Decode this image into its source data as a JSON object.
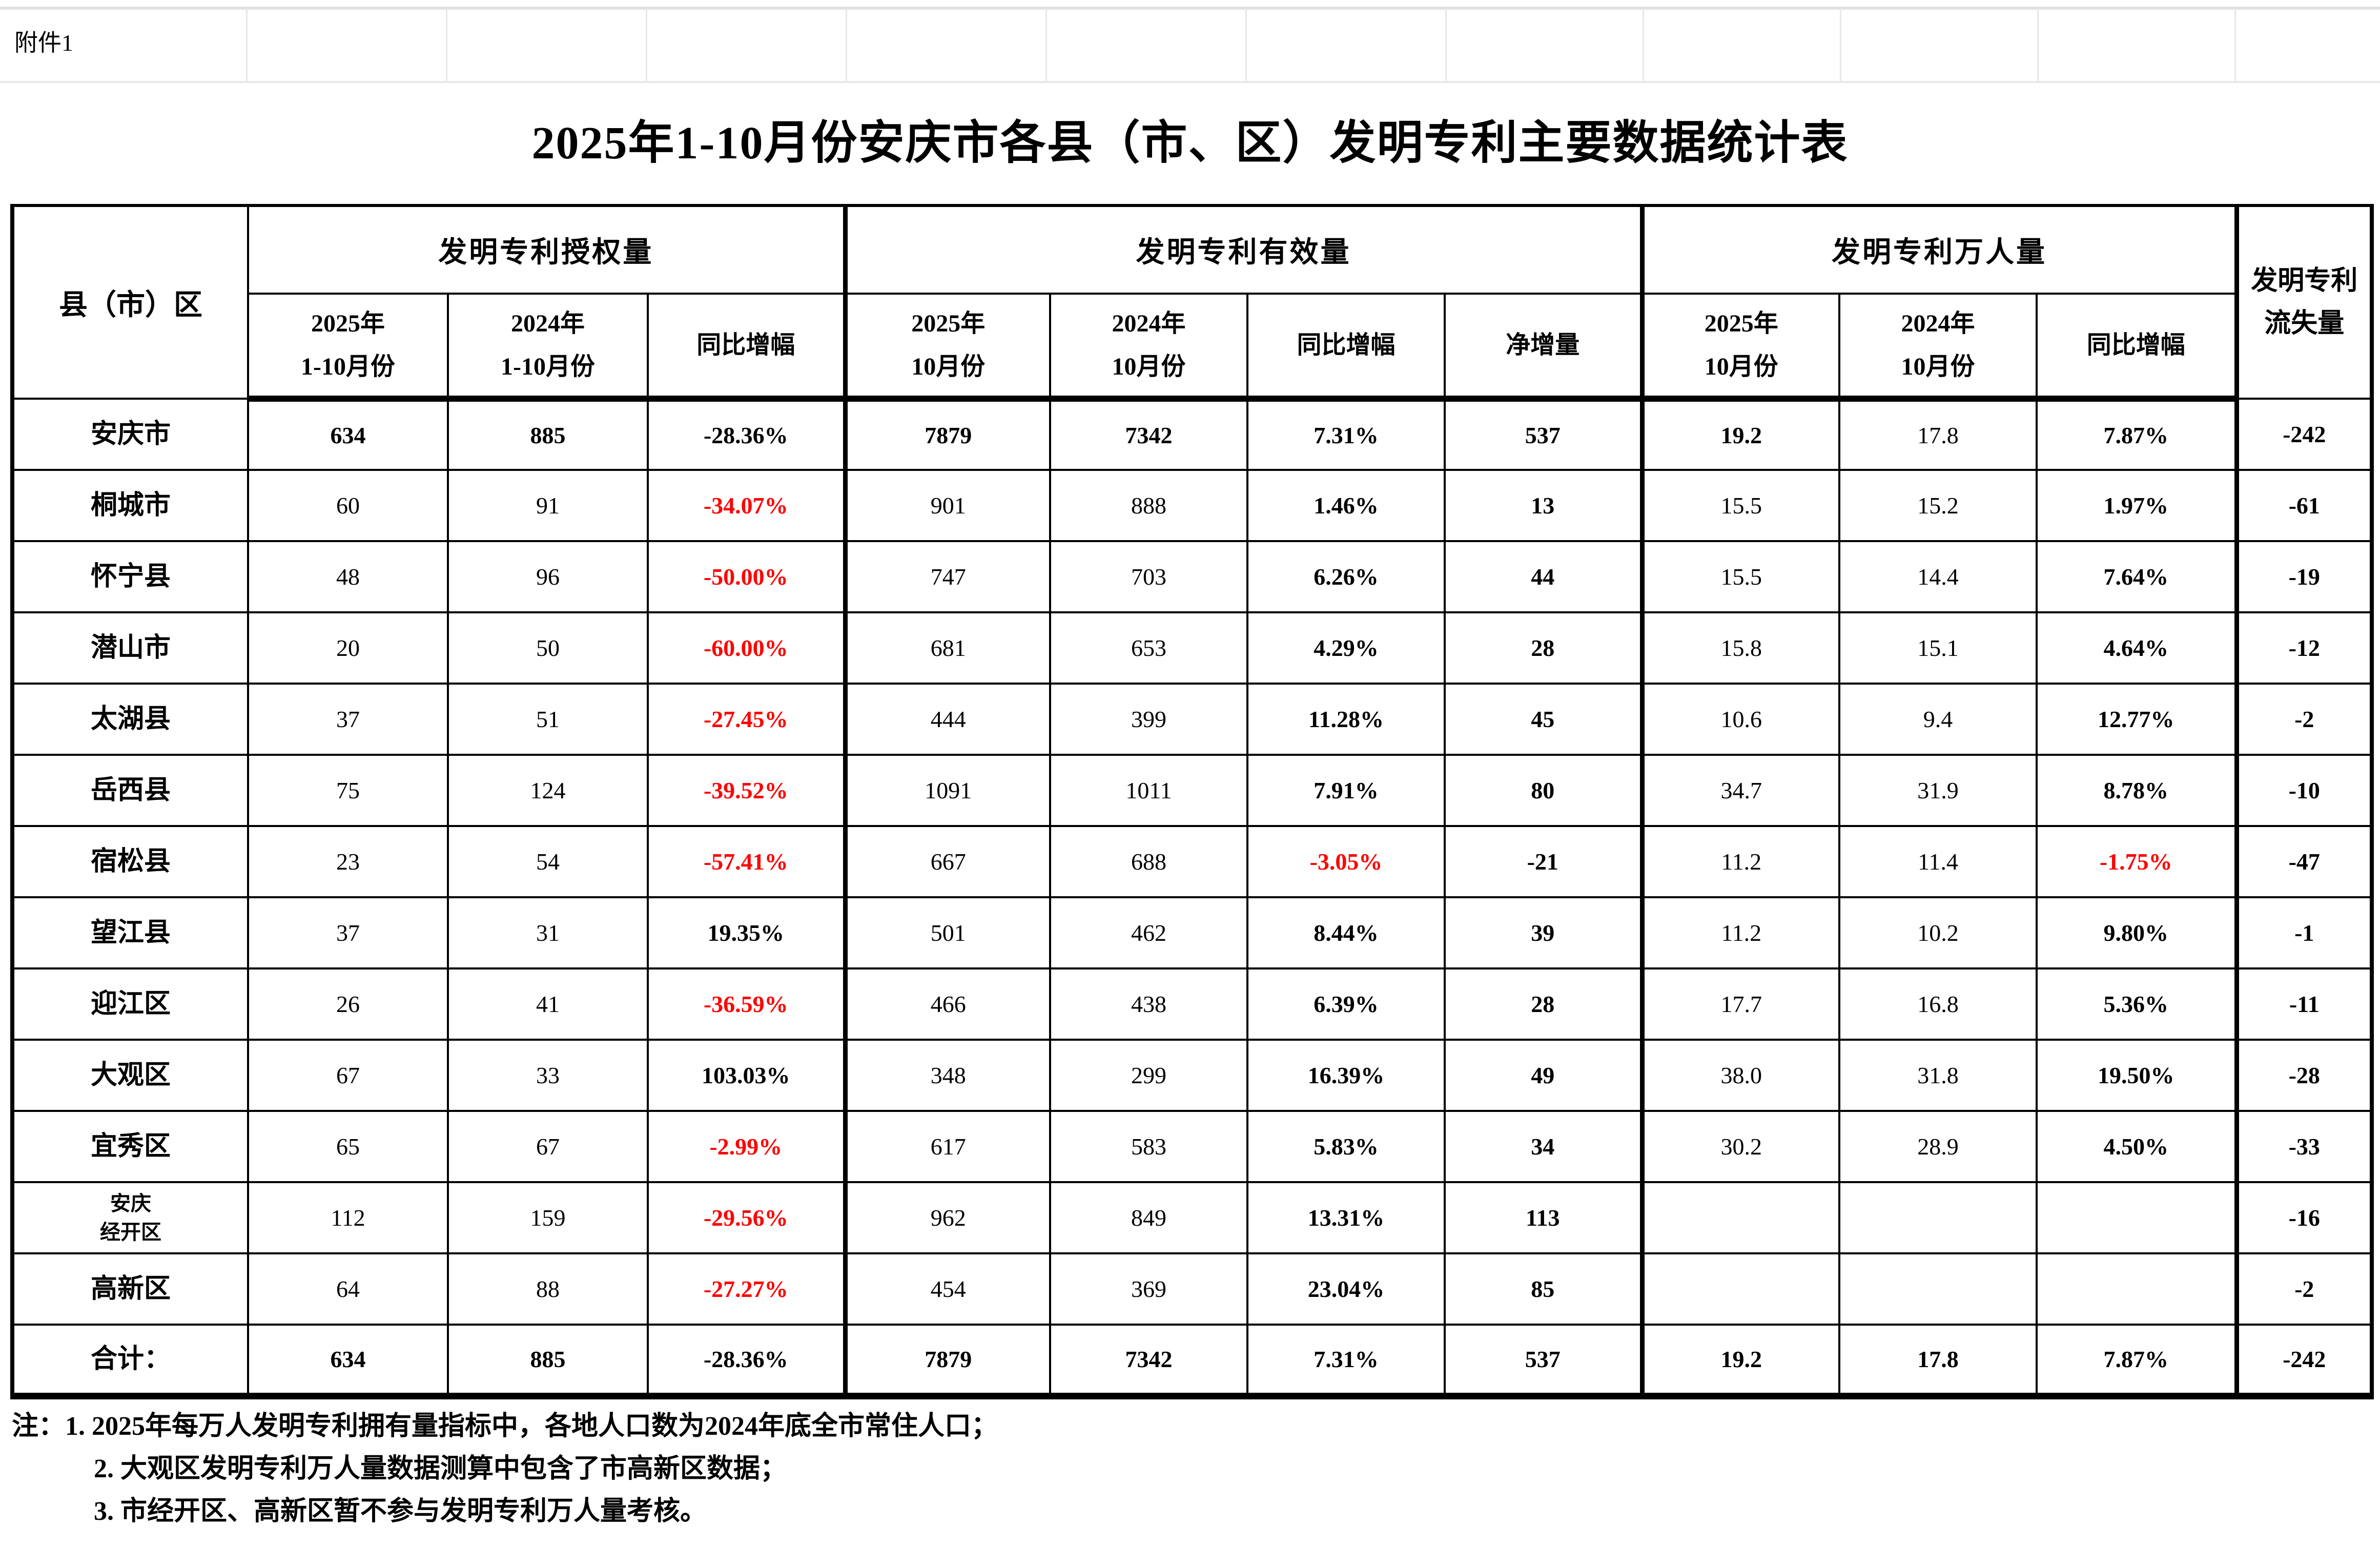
{
  "attachment_label": "附件1",
  "title": "2025年1-10月份安庆市各县（市、区）发明专利主要数据统计表",
  "colors": {
    "negative_red": "#ff0000",
    "text": "#000000",
    "gridline": "#e8e8e8"
  },
  "header": {
    "corner": "县（市）区",
    "groups": [
      "发明专利授权量",
      "发明专利有效量",
      "发明专利万人量"
    ],
    "loss_lines": [
      "发明专利",
      "流失量"
    ],
    "subs": [
      {
        "l1": "2025年",
        "l2": "1-10月份"
      },
      {
        "l1": "2024年",
        "l2": "1-10月份"
      },
      {
        "l1": "同比增幅",
        "l2": ""
      },
      {
        "l1": "2025年",
        "l2": "10月份"
      },
      {
        "l1": "2024年",
        "l2": "10月份"
      },
      {
        "l1": "同比增幅",
        "l2": ""
      },
      {
        "l1": "净增量",
        "l2": ""
      },
      {
        "l1": "2025年",
        "l2": "10月份"
      },
      {
        "l1": "2024年",
        "l2": "10月份"
      },
      {
        "l1": "同比增幅",
        "l2": ""
      }
    ]
  },
  "table": {
    "rows": [
      {
        "name": "安庆市",
        "emphasis": true,
        "cells": [
          "634",
          "885",
          "-28.36%",
          "7879",
          "7342",
          "7.31%",
          "537",
          "19.2",
          "17.8",
          "7.87%",
          "-242"
        ]
      },
      {
        "name": "桐城市",
        "cells": [
          "60",
          "91",
          "-34.07%",
          "901",
          "888",
          "1.46%",
          "13",
          "15.5",
          "15.2",
          "1.97%",
          "-61"
        ]
      },
      {
        "name": "怀宁县",
        "cells": [
          "48",
          "96",
          "-50.00%",
          "747",
          "703",
          "6.26%",
          "44",
          "15.5",
          "14.4",
          "7.64%",
          "-19"
        ]
      },
      {
        "name": "潜山市",
        "cells": [
          "20",
          "50",
          "-60.00%",
          "681",
          "653",
          "4.29%",
          "28",
          "15.8",
          "15.1",
          "4.64%",
          "-12"
        ]
      },
      {
        "name": "太湖县",
        "cells": [
          "37",
          "51",
          "-27.45%",
          "444",
          "399",
          "11.28%",
          "45",
          "10.6",
          "9.4",
          "12.77%",
          "-2"
        ]
      },
      {
        "name": "岳西县",
        "cells": [
          "75",
          "124",
          "-39.52%",
          "1091",
          "1011",
          "7.91%",
          "80",
          "34.7",
          "31.9",
          "8.78%",
          "-10"
        ]
      },
      {
        "name": "宿松县",
        "cells": [
          "23",
          "54",
          "-57.41%",
          "667",
          "688",
          "-3.05%",
          "-21",
          "11.2",
          "11.4",
          "-1.75%",
          "-47"
        ]
      },
      {
        "name": "望江县",
        "cells": [
          "37",
          "31",
          "19.35%",
          "501",
          "462",
          "8.44%",
          "39",
          "11.2",
          "10.2",
          "9.80%",
          "-1"
        ]
      },
      {
        "name": "迎江区",
        "cells": [
          "26",
          "41",
          "-36.59%",
          "466",
          "438",
          "6.39%",
          "28",
          "17.7",
          "16.8",
          "5.36%",
          "-11"
        ]
      },
      {
        "name": "大观区",
        "cells": [
          "67",
          "33",
          "103.03%",
          "348",
          "299",
          "16.39%",
          "49",
          "38.0",
          "31.8",
          "19.50%",
          "-28"
        ]
      },
      {
        "name": "宜秀区",
        "cells": [
          "65",
          "67",
          "-2.99%",
          "617",
          "583",
          "5.83%",
          "34",
          "30.2",
          "28.9",
          "4.50%",
          "-33"
        ]
      },
      {
        "name": "安庆\n经开区",
        "small_label": true,
        "cells": [
          "112",
          "159",
          "-29.56%",
          "962",
          "849",
          "13.31%",
          "113",
          "",
          "",
          "",
          "-16"
        ]
      },
      {
        "name": "高新区",
        "cells": [
          "64",
          "88",
          "-27.27%",
          "454",
          "369",
          "23.04%",
          "85",
          "",
          "",
          "",
          "-2"
        ]
      },
      {
        "name": "合计：",
        "emphasis": true,
        "is_total": true,
        "cells": [
          "634",
          "885",
          "-28.36%",
          "7879",
          "7342",
          "7.31%",
          "537",
          "19.2",
          "17.8",
          "7.87%",
          "-242"
        ]
      }
    ]
  },
  "notes": [
    "注：1. 2025年每万人发明专利拥有量指标中，各地人口数为2024年底全市常住人口；",
    "2. 大观区发明专利万人量数据测算中包含了市高新区数据；",
    "3. 市经开区、高新区暂不参与发明专利万人量考核。"
  ]
}
